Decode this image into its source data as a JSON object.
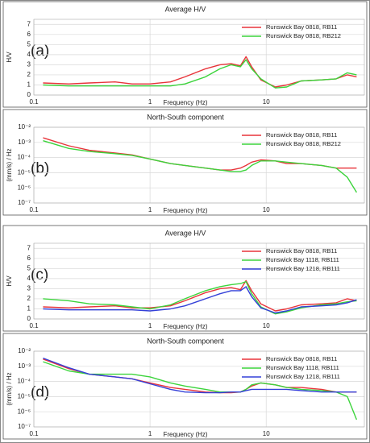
{
  "chart_data": [
    {
      "type": "line",
      "title": "Average H/V",
      "panel_label": "(a)",
      "x_label": "Frequency (Hz)",
      "y_label": "H/V",
      "log_x": true,
      "log_y": false,
      "grid": true,
      "legend": "upper right",
      "xlim": [
        0.1,
        70
      ],
      "xticks": [
        0.1,
        1,
        10
      ],
      "ylim": [
        0,
        7.5
      ],
      "yticks": [
        0,
        1,
        2,
        3,
        4,
        5,
        6,
        7
      ],
      "x": [
        0.12,
        0.2,
        0.3,
        0.5,
        0.7,
        1,
        1.5,
        2,
        3,
        4,
        5,
        6,
        6.7,
        7.5,
        9,
        12,
        15,
        20,
        30,
        40,
        50,
        60
      ],
      "series": [
        {
          "name": "Runswick Bay 0818, RB11",
          "color": "#e8343a",
          "values": [
            1.2,
            1.1,
            1.2,
            1.3,
            1.1,
            1.1,
            1.3,
            1.8,
            2.6,
            3.0,
            3.1,
            2.9,
            3.8,
            2.8,
            1.5,
            0.8,
            1.0,
            1.4,
            1.5,
            1.6,
            2.0,
            1.8
          ]
        },
        {
          "name": "Runswick Bay 0818, RB212",
          "color": "#3cd43c",
          "values": [
            1.0,
            0.9,
            0.9,
            0.9,
            0.9,
            0.9,
            0.9,
            1.1,
            1.8,
            2.6,
            3.0,
            2.8,
            3.5,
            2.6,
            1.6,
            0.7,
            0.8,
            1.4,
            1.5,
            1.6,
            2.2,
            2.0
          ]
        }
      ]
    },
    {
      "type": "line",
      "title": "North-South component",
      "panel_label": "(b)",
      "x_label": "Frequency (Hz)",
      "y_label": "(mm/s) / Hz",
      "log_x": true,
      "log_y": true,
      "grid": true,
      "legend": "upper right",
      "xlim": [
        0.1,
        70
      ],
      "xticks": [
        0.1,
        1,
        10
      ],
      "ylim": [
        1e-07,
        0.01
      ],
      "yticks": [
        {
          "value": 1e-07,
          "label": "10⁻⁷"
        },
        {
          "value": 1e-06,
          "label": "10⁻⁶"
        },
        {
          "value": 1e-05,
          "label": "10⁻⁵"
        },
        {
          "value": 0.0001,
          "label": "10⁻⁴"
        },
        {
          "value": 0.001,
          "label": "10⁻³"
        },
        {
          "value": 0.01,
          "label": "10⁻²"
        }
      ],
      "x": [
        0.12,
        0.2,
        0.3,
        0.5,
        0.7,
        1,
        1.5,
        2,
        3,
        4,
        5,
        6,
        6.7,
        7.5,
        9,
        12,
        15,
        20,
        30,
        40,
        50,
        60
      ],
      "series": [
        {
          "name": "Runswick Bay 0818, RB11",
          "color": "#e8343a",
          "values": [
            0.002,
            0.0006,
            0.0003,
            0.0002,
            0.00015,
            8e-05,
            4e-05,
            3e-05,
            2e-05,
            1.5e-05,
            1.5e-05,
            2e-05,
            3e-05,
            5e-05,
            7e-05,
            6e-05,
            4e-05,
            4e-05,
            3e-05,
            2e-05,
            2e-05,
            2e-05
          ]
        },
        {
          "name": "Runswick Bay 0818, RB212",
          "color": "#3cd43c",
          "values": [
            0.0013,
            0.0004,
            0.00025,
            0.00018,
            0.00014,
            8e-05,
            4e-05,
            3e-05,
            2e-05,
            1.5e-05,
            1.2e-05,
            1.2e-05,
            1.5e-05,
            3e-05,
            6e-05,
            6e-05,
            5e-05,
            4e-05,
            3e-05,
            2e-05,
            5e-06,
            5e-07
          ]
        }
      ]
    },
    {
      "type": "line",
      "title": "Average H/V",
      "panel_label": "(c)",
      "x_label": "Frequency (Hz)",
      "y_label": "H/V",
      "log_x": true,
      "log_y": false,
      "grid": true,
      "legend": "upper right",
      "xlim": [
        0.1,
        70
      ],
      "xticks": [
        0.1,
        1,
        10
      ],
      "ylim": [
        0,
        7.5
      ],
      "yticks": [
        0,
        1,
        2,
        3,
        4,
        5,
        6,
        7
      ],
      "x": [
        0.12,
        0.2,
        0.3,
        0.5,
        0.7,
        1,
        1.5,
        2,
        3,
        4,
        5,
        6,
        6.7,
        7.5,
        9,
        12,
        15,
        20,
        30,
        40,
        50,
        60
      ],
      "series": [
        {
          "name": "Runswick Bay 0818, RB11",
          "color": "#e8343a",
          "values": [
            1.2,
            1.1,
            1.2,
            1.3,
            1.1,
            1.1,
            1.3,
            1.8,
            2.6,
            3.0,
            3.1,
            2.9,
            3.8,
            2.8,
            1.5,
            0.8,
            1.0,
            1.4,
            1.5,
            1.6,
            2.0,
            1.8
          ]
        },
        {
          "name": "Runswick Bay 1118, RB111",
          "color": "#3cd43c",
          "values": [
            2.0,
            1.8,
            1.5,
            1.4,
            1.2,
            1.0,
            1.4,
            2.0,
            2.8,
            3.2,
            3.4,
            3.5,
            3.7,
            2.5,
            1.2,
            0.5,
            0.7,
            1.1,
            1.4,
            1.5,
            1.7,
            1.8
          ]
        },
        {
          "name": "Runswick Bay 1218, RB111",
          "color": "#3440d8",
          "values": [
            1.0,
            0.9,
            0.9,
            0.9,
            0.9,
            0.8,
            1.0,
            1.3,
            2.0,
            2.5,
            2.8,
            2.8,
            3.2,
            2.2,
            1.1,
            0.6,
            0.8,
            1.2,
            1.3,
            1.4,
            1.6,
            1.9
          ]
        }
      ]
    },
    {
      "type": "line",
      "title": "North-South component",
      "panel_label": "(d)",
      "x_label": "Frequency (Hz)",
      "y_label": "(mm/s) / Hz",
      "log_x": true,
      "log_y": true,
      "grid": true,
      "legend": "upper right",
      "xlim": [
        0.1,
        70
      ],
      "xticks": [
        0.1,
        1,
        10
      ],
      "ylim": [
        1e-07,
        0.01
      ],
      "yticks": [
        {
          "value": 1e-07,
          "label": "10⁻⁷"
        },
        {
          "value": 1e-06,
          "label": "10⁻⁶"
        },
        {
          "value": 1e-05,
          "label": "10⁻⁵"
        },
        {
          "value": 0.0001,
          "label": "10⁻⁴"
        },
        {
          "value": 0.001,
          "label": "10⁻³"
        },
        {
          "value": 0.01,
          "label": "10⁻²"
        }
      ],
      "x": [
        0.12,
        0.2,
        0.3,
        0.5,
        0.7,
        1,
        1.5,
        2,
        3,
        4,
        5,
        6,
        6.7,
        7.5,
        9,
        12,
        15,
        20,
        30,
        40,
        50,
        60
      ],
      "series": [
        {
          "name": "Runswick Bay 0818, RB11",
          "color": "#e8343a",
          "values": [
            0.003,
            0.0007,
            0.0003,
            0.0002,
            0.00015,
            8e-05,
            4e-05,
            3e-05,
            2e-05,
            1.8e-05,
            1.8e-05,
            2e-05,
            3e-05,
            5e-05,
            8e-05,
            6e-05,
            4e-05,
            4e-05,
            3e-05,
            2e-05,
            2e-05,
            2e-05
          ]
        },
        {
          "name": "Runswick Bay 1118, RB111",
          "color": "#3cd43c",
          "values": [
            0.002,
            0.0005,
            0.0003,
            0.0003,
            0.0003,
            0.0002,
            8e-05,
            5e-05,
            3e-05,
            2e-05,
            2e-05,
            2e-05,
            3e-05,
            6e-05,
            8e-05,
            6e-05,
            4e-05,
            3e-05,
            2.5e-05,
            2e-05,
            1e-05,
            3e-07
          ]
        },
        {
          "name": "Runswick Bay 1218, RB111",
          "color": "#3440d8",
          "values": [
            0.0035,
            0.0008,
            0.0003,
            0.0002,
            0.00015,
            7e-05,
            3e-05,
            2e-05,
            1.8e-05,
            1.8e-05,
            2e-05,
            2e-05,
            2.5e-05,
            3e-05,
            3e-05,
            3e-05,
            3e-05,
            2.5e-05,
            2e-05,
            2e-05,
            2e-05,
            2e-05
          ]
        }
      ]
    }
  ]
}
